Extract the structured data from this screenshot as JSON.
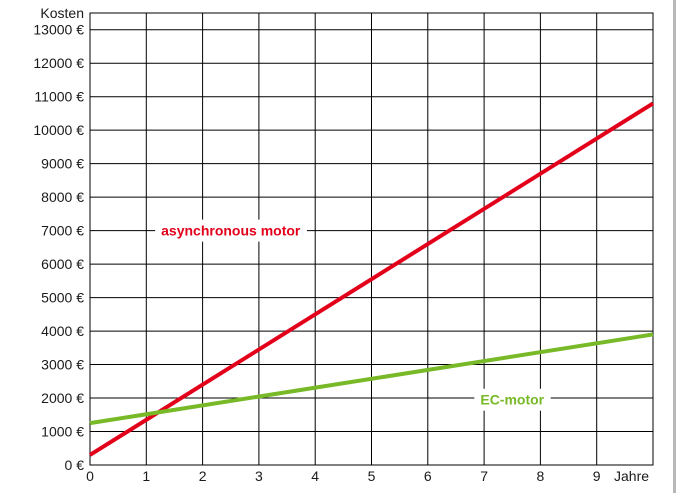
{
  "chart_data": {
    "type": "line",
    "title": "",
    "xlabel": "Jahre",
    "ylabel": "Kosten",
    "x_ticks": [
      "0",
      "1",
      "2",
      "3",
      "4",
      "5",
      "6",
      "7",
      "8",
      "9"
    ],
    "y_ticks": [
      "0 €",
      "1000 €",
      "2000 €",
      "3000 €",
      "4000 €",
      "5000 €",
      "6000 €",
      "7000 €",
      "8000 €",
      "9000 €",
      "10000 €",
      "11000 €",
      "12000 €",
      "13000 €"
    ],
    "xlim": [
      0,
      10
    ],
    "ylim": [
      0,
      13500
    ],
    "grid": true,
    "series": [
      {
        "name": "asynchronous motor",
        "color": "#e2001a",
        "x": [
          0,
          10
        ],
        "y": [
          300,
          10800
        ]
      },
      {
        "name": "EC-motor",
        "color": "#78b928",
        "x": [
          0,
          10
        ],
        "y": [
          1250,
          3900
        ]
      }
    ],
    "annotations": [
      {
        "text": "asynchronous motor",
        "x": 2.5,
        "y": 7000,
        "color": "#e2001a"
      },
      {
        "text": "EC-motor",
        "x": 7.5,
        "y": 1950,
        "color": "#78b928"
      }
    ]
  }
}
